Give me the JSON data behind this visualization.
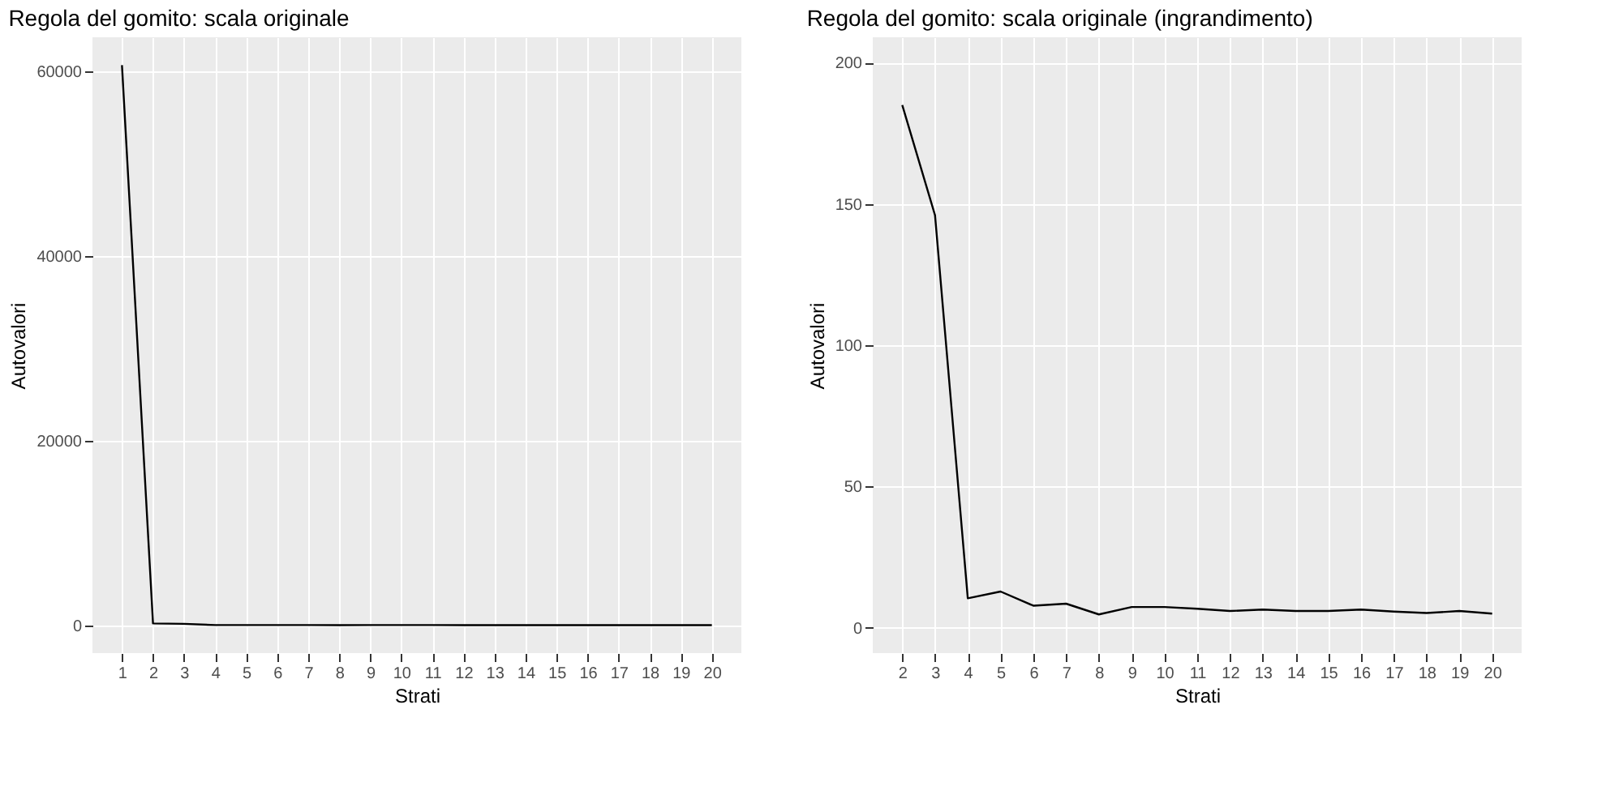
{
  "chart_data": [
    {
      "type": "line",
      "title": "Regola del gomito: scala originale",
      "xlabel": "Strati",
      "ylabel": "Autovalori",
      "x": [
        1,
        2,
        3,
        4,
        5,
        6,
        7,
        8,
        9,
        10,
        11,
        12,
        13,
        14,
        15,
        16,
        17,
        18,
        19,
        20
      ],
      "series": [
        {
          "color": "#000000",
          "values": [
            60700,
            185,
            146,
            10.4,
            12.8,
            7.8,
            8.5,
            4.7,
            7.3,
            7.3,
            6.7,
            5.9,
            6.4,
            5.9,
            5.9,
            6.4,
            5.7,
            5.2,
            5.9,
            5.0
          ]
        }
      ],
      "xlim": [
        0.05,
        20.95
      ],
      "xticks": [
        1,
        2,
        3,
        4,
        5,
        6,
        7,
        8,
        9,
        10,
        11,
        12,
        13,
        14,
        15,
        16,
        17,
        18,
        19,
        20
      ],
      "ylim": [
        -3030,
        63720
      ],
      "yticks": [
        0,
        20000,
        40000,
        60000
      ],
      "grid": true,
      "legend": false
    },
    {
      "type": "line",
      "title": "Regola del gomito: scala originale (ingrandimento)",
      "xlabel": "Strati",
      "ylabel": "Autovalori",
      "x": [
        2,
        3,
        4,
        5,
        6,
        7,
        8,
        9,
        10,
        11,
        12,
        13,
        14,
        15,
        16,
        17,
        18,
        19,
        20
      ],
      "series": [
        {
          "color": "#000000",
          "values": [
            185,
            146,
            10.4,
            12.8,
            7.8,
            8.5,
            4.7,
            7.3,
            7.3,
            6.7,
            5.9,
            6.4,
            5.9,
            5.9,
            6.4,
            5.7,
            5.2,
            5.9,
            5.0
          ]
        }
      ],
      "xlim": [
        1.1,
        20.9
      ],
      "xticks": [
        2,
        3,
        4,
        5,
        6,
        7,
        8,
        9,
        10,
        11,
        12,
        13,
        14,
        15,
        16,
        17,
        18,
        19,
        20
      ],
      "ylim": [
        -9,
        209
      ],
      "yticks": [
        0,
        50,
        100,
        150,
        200
      ],
      "grid": true,
      "legend": false
    }
  ]
}
